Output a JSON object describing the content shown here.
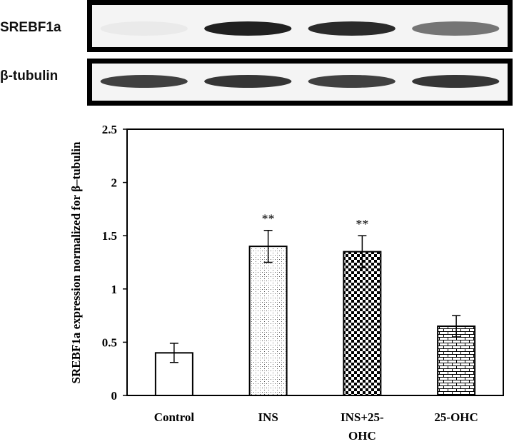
{
  "blots": [
    {
      "label": "SREBF1a",
      "band_intensity": [
        0.05,
        1.0,
        0.95,
        0.6
      ]
    },
    {
      "label": "β-tubulin",
      "band_intensity": [
        0.85,
        0.9,
        0.85,
        0.9
      ]
    }
  ],
  "chart_data": {
    "type": "bar",
    "categories": [
      "Control",
      "INS",
      "INS+25-OHC",
      "25-OHC"
    ],
    "category_lines": [
      [
        "Control"
      ],
      [
        "INS"
      ],
      [
        "INS+25-",
        "OHC"
      ],
      [
        "25-OHC"
      ]
    ],
    "values": [
      0.4,
      1.4,
      1.35,
      0.65
    ],
    "errors": [
      0.09,
      0.15,
      0.15,
      0.1
    ],
    "significance": [
      "",
      "**",
      "**",
      ""
    ],
    "patterns": [
      "none",
      "dots",
      "checker",
      "brick"
    ],
    "ylabel": "SREBF1a expression normalized for β–tubulin",
    "ylim": [
      0,
      2.5
    ],
    "yticks": [
      0,
      0.5,
      1,
      1.5,
      2,
      2.5
    ],
    "ytick_labels": [
      "0",
      "0.5",
      "1",
      "1.5",
      "2",
      "2.5"
    ],
    "grid": false,
    "legend": "none"
  }
}
